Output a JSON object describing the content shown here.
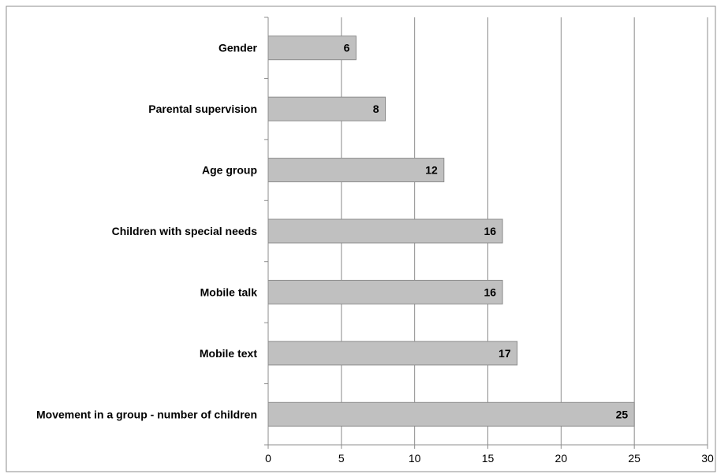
{
  "chart_data": {
    "type": "bar",
    "orientation": "horizontal",
    "categories": [
      "Gender",
      "Parental supervision",
      "Age group",
      "Children with special needs",
      "Mobile talk",
      "Mobile text",
      "Movement in a group - number of children"
    ],
    "values": [
      6,
      8,
      12,
      16,
      16,
      17,
      25
    ],
    "xlim": [
      0,
      30
    ],
    "xticks": [
      "0",
      "5",
      "10",
      "15",
      "20",
      "25",
      "30"
    ],
    "grid": true,
    "legend": "none",
    "data_labels": true,
    "colors": {
      "bar_fill": "#c0c0c0",
      "bar_stroke": "#8c8c8c",
      "grid": "#8c8c8c",
      "axis": "#8c8c8c",
      "border": "#8c8c8c"
    }
  }
}
